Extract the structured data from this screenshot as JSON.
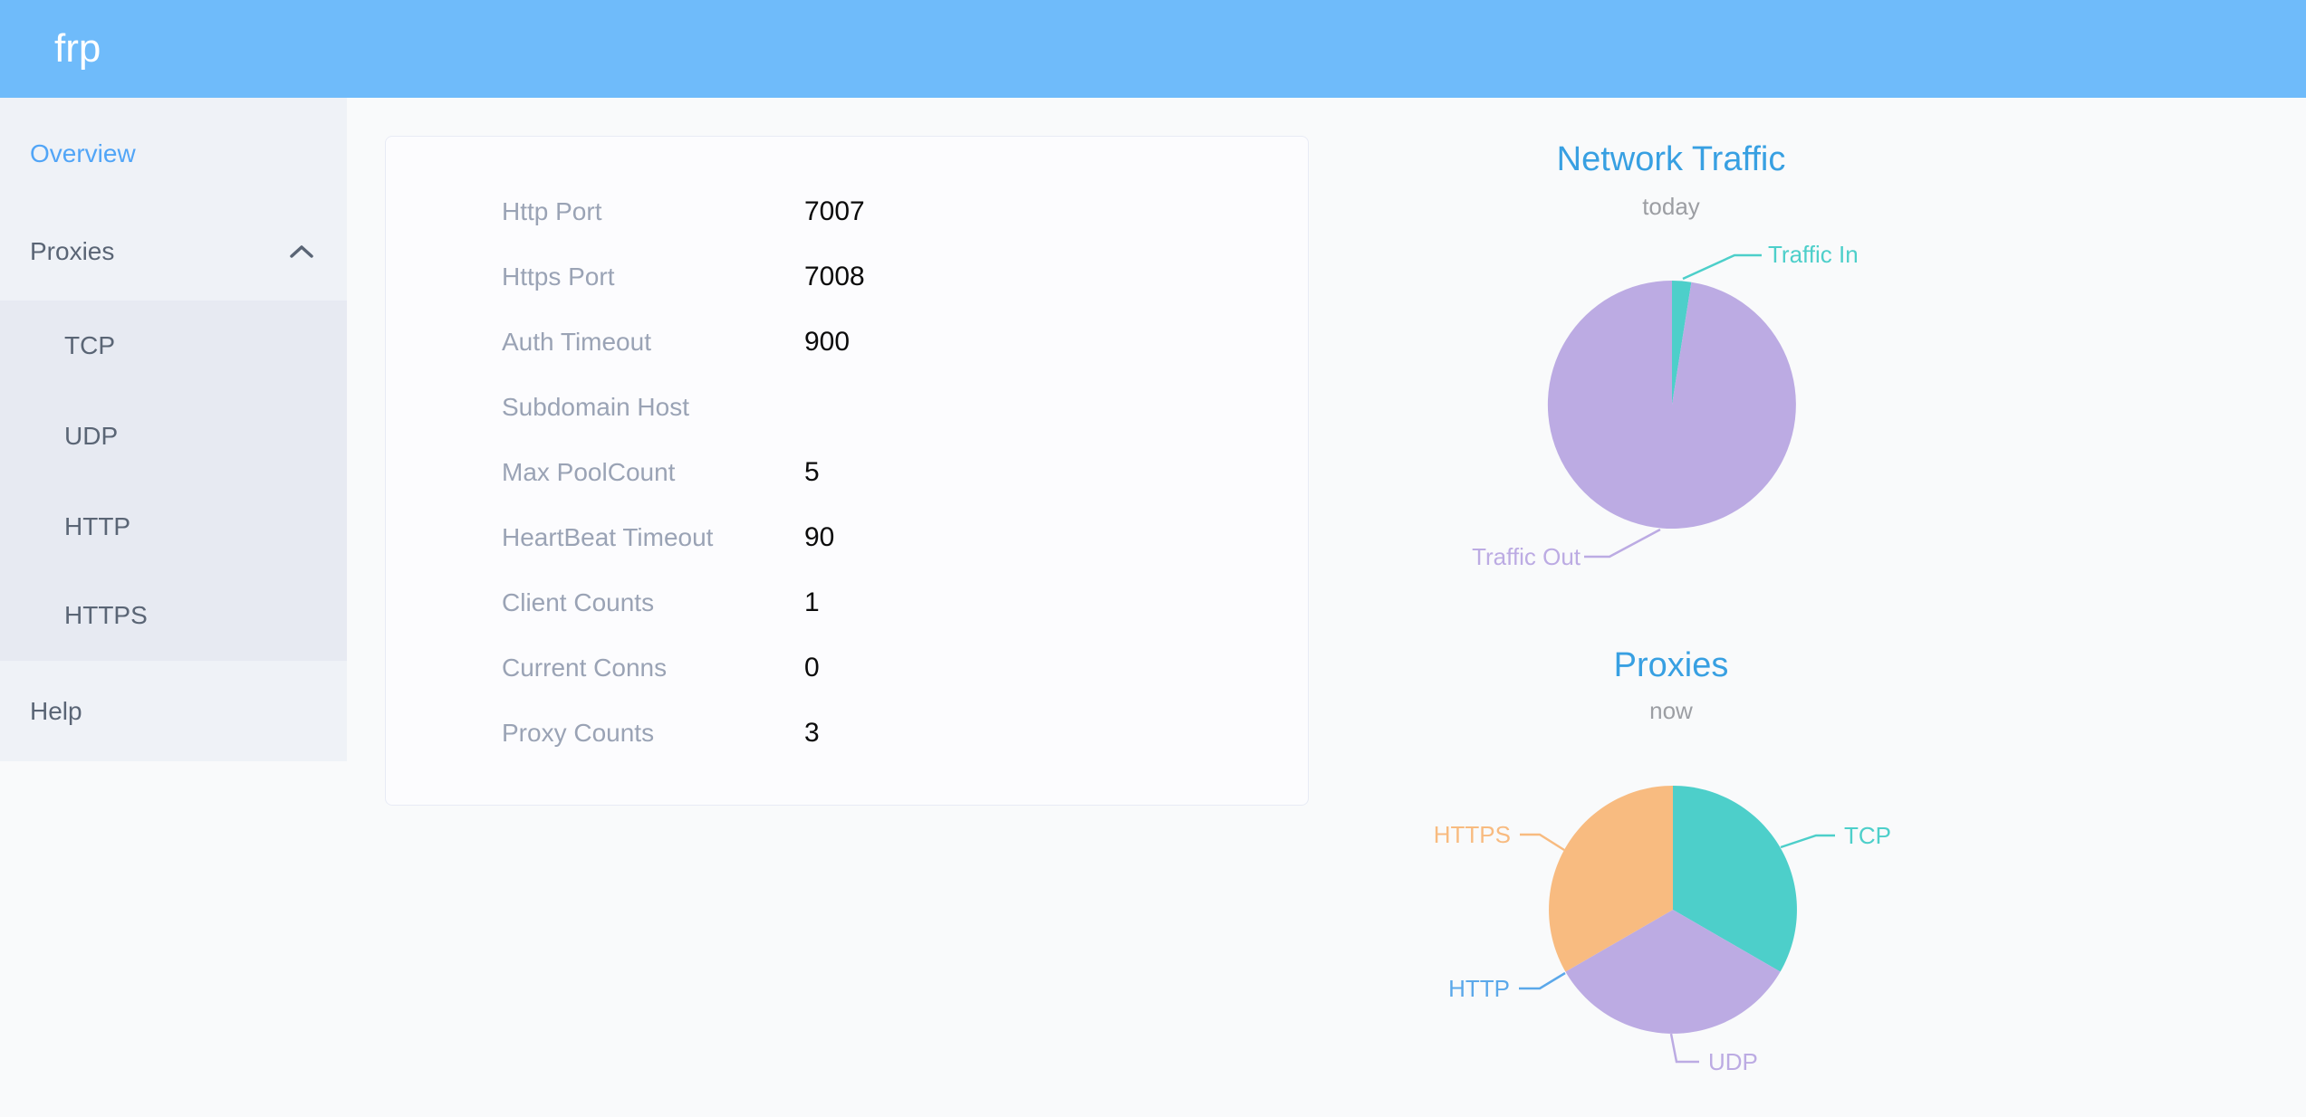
{
  "header": {
    "logo": "frp"
  },
  "sidebar": {
    "items": [
      {
        "label": "Overview",
        "active": true
      },
      {
        "label": "Proxies",
        "expanded": true,
        "children": [
          {
            "label": "TCP"
          },
          {
            "label": "UDP"
          },
          {
            "label": "HTTP"
          },
          {
            "label": "HTTPS"
          }
        ]
      },
      {
        "label": "Help"
      }
    ]
  },
  "overview": {
    "rows": [
      {
        "label": "Http Port",
        "value": "7007"
      },
      {
        "label": "Https Port",
        "value": "7008"
      },
      {
        "label": "Auth Timeout",
        "value": "900"
      },
      {
        "label": "Subdomain Host",
        "value": ""
      },
      {
        "label": "Max PoolCount",
        "value": "5"
      },
      {
        "label": "HeartBeat Timeout",
        "value": "90"
      },
      {
        "label": "Client Counts",
        "value": "1"
      },
      {
        "label": "Current Conns",
        "value": "0"
      },
      {
        "label": "Proxy Counts",
        "value": "3"
      }
    ]
  },
  "chart_data": [
    {
      "type": "pie",
      "title": "Network Traffic",
      "subtitle": "today",
      "values_unit": "share_percent_estimated_from_pixels",
      "legend_position": "callout-labels",
      "series": [
        {
          "name": "Traffic In",
          "value": 2.5,
          "color": "#4dcfca"
        },
        {
          "name": "Traffic Out",
          "value": 97.5,
          "color": "#bcabe3"
        }
      ]
    },
    {
      "type": "pie",
      "title": "Proxies",
      "subtitle": "now",
      "values_unit": "proxy_count",
      "legend_position": "callout-labels",
      "series": [
        {
          "name": "TCP",
          "value": 1,
          "color": "#4dcfca"
        },
        {
          "name": "UDP",
          "value": 1,
          "color": "#bcabe3"
        },
        {
          "name": "HTTP",
          "value": 0,
          "color": "#5ba8ea"
        },
        {
          "name": "HTTPS",
          "value": 1,
          "color": "#f8bb80"
        }
      ]
    }
  ],
  "colors": {
    "header_bg": "#6fbbfa",
    "sidebar_bg": "#eff2f7",
    "submenu_bg": "#e7eaf2",
    "active_item": "#51a5f7",
    "item_text": "#5a6575",
    "card_label": "#9aa3b5",
    "chart_title_blue": "#38a0e2"
  }
}
